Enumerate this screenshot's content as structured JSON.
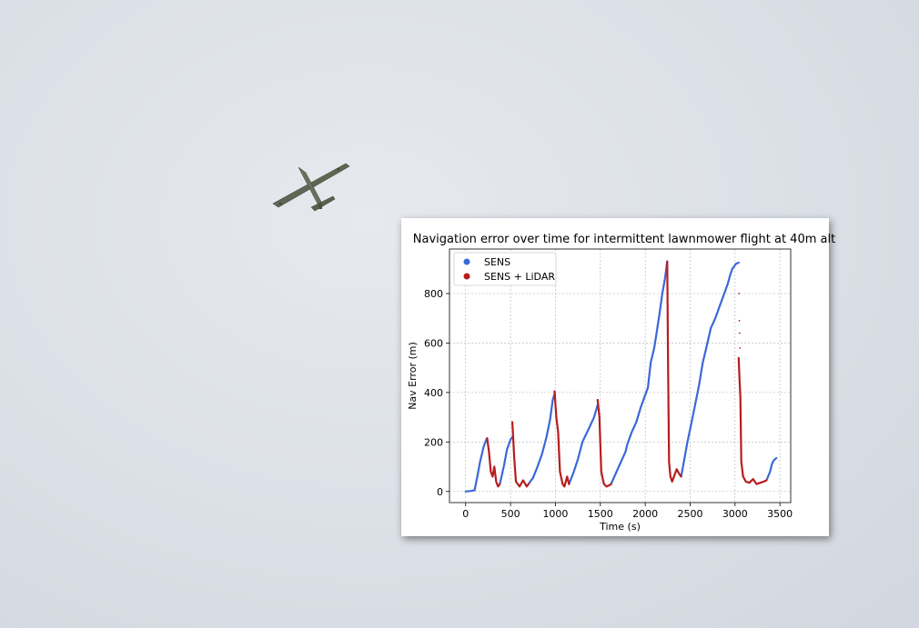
{
  "background": {
    "description_icon": "airplane-icon",
    "sky_color": "#dde1e8"
  },
  "chart_data": {
    "type": "scatter",
    "title": "Navigation error over time for intermittent lawnmower flight at 40m alt",
    "xlabel": "Time (s)",
    "ylabel": "Nav Error (m)",
    "xlim": [
      -180,
      3620
    ],
    "ylim": [
      -45,
      980
    ],
    "xticks": [
      0,
      500,
      1000,
      1500,
      2000,
      2500,
      3000,
      3500
    ],
    "yticks": [
      0,
      200,
      400,
      600,
      800
    ],
    "grid": true,
    "legend_position": "top-left",
    "series": [
      {
        "name": "SENS",
        "color": "#3b68d8",
        "segments": [
          [
            [
              0,
              0
            ],
            [
              60,
              2
            ],
            [
              100,
              5
            ],
            [
              130,
              60
            ],
            [
              160,
              120
            ],
            [
              200,
              180
            ],
            [
              230,
              210
            ],
            [
              240,
              215
            ]
          ],
          [
            [
              380,
              30
            ],
            [
              400,
              60
            ],
            [
              430,
              110
            ],
            [
              460,
              170
            ],
            [
              500,
              210
            ],
            [
              520,
              220
            ]
          ],
          [
            [
              700,
              30
            ],
            [
              750,
              55
            ],
            [
              800,
              100
            ],
            [
              850,
              150
            ],
            [
              900,
              220
            ],
            [
              940,
              290
            ],
            [
              970,
              370
            ],
            [
              990,
              395
            ]
          ],
          [
            [
              1150,
              30
            ],
            [
              1200,
              75
            ],
            [
              1250,
              130
            ],
            [
              1300,
              200
            ],
            [
              1380,
              260
            ],
            [
              1430,
              300
            ],
            [
              1470,
              350
            ]
          ],
          [
            [
              1620,
              30
            ],
            [
              1680,
              80
            ],
            [
              1730,
              120
            ],
            [
              1780,
              160
            ],
            [
              1800,
              190
            ],
            [
              1850,
              240
            ],
            [
              1900,
              280
            ],
            [
              1950,
              340
            ],
            [
              2000,
              390
            ],
            [
              2030,
              420
            ],
            [
              2060,
              520
            ],
            [
              2100,
              580
            ],
            [
              2130,
              650
            ],
            [
              2160,
              720
            ],
            [
              2190,
              800
            ],
            [
              2220,
              860
            ],
            [
              2245,
              930
            ]
          ],
          [
            [
              2400,
              60
            ],
            [
              2430,
              120
            ],
            [
              2470,
              200
            ],
            [
              2510,
              270
            ],
            [
              2550,
              340
            ],
            [
              2600,
              430
            ],
            [
              2640,
              520
            ],
            [
              2680,
              580
            ],
            [
              2730,
              660
            ],
            [
              2780,
              700
            ],
            [
              2830,
              750
            ],
            [
              2880,
              800
            ],
            [
              2920,
              840
            ],
            [
              2950,
              880
            ],
            [
              2970,
              900
            ],
            [
              2990,
              910
            ],
            [
              3010,
              920
            ],
            [
              3040,
              925
            ]
          ],
          [
            [
              3350,
              45
            ],
            [
              3390,
              80
            ],
            [
              3410,
              110
            ],
            [
              3430,
              125
            ],
            [
              3460,
              135
            ]
          ]
        ]
      },
      {
        "name": "SENS + LiDAR",
        "color": "#b81c1c",
        "segments": [
          [
            [
              240,
              215
            ],
            [
              260,
              160
            ],
            [
              280,
              80
            ],
            [
              300,
              60
            ],
            [
              320,
              100
            ],
            [
              340,
              40
            ],
            [
              360,
              20
            ],
            [
              380,
              30
            ]
          ],
          [
            [
              520,
              280
            ],
            [
              540,
              140
            ],
            [
              560,
              40
            ],
            [
              600,
              20
            ],
            [
              640,
              45
            ],
            [
              680,
              20
            ],
            [
              700,
              30
            ]
          ],
          [
            [
              990,
              405
            ],
            [
              1010,
              300
            ],
            [
              1030,
              240
            ],
            [
              1050,
              80
            ],
            [
              1080,
              30
            ],
            [
              1100,
              20
            ],
            [
              1130,
              60
            ],
            [
              1150,
              30
            ]
          ],
          [
            [
              1470,
              370
            ],
            [
              1490,
              300
            ],
            [
              1510,
              80
            ],
            [
              1540,
              30
            ],
            [
              1570,
              20
            ],
            [
              1600,
              25
            ],
            [
              1620,
              30
            ]
          ],
          [
            [
              2245,
              930
            ],
            [
              2255,
              480
            ],
            [
              2265,
              120
            ],
            [
              2280,
              60
            ],
            [
              2300,
              40
            ],
            [
              2320,
              60
            ],
            [
              2350,
              90
            ],
            [
              2380,
              70
            ],
            [
              2400,
              60
            ]
          ],
          [
            [
              3040,
              540
            ],
            [
              3050,
              450
            ],
            [
              3060,
              380
            ],
            [
              3070,
              120
            ],
            [
              3090,
              60
            ],
            [
              3120,
              40
            ],
            [
              3160,
              35
            ],
            [
              3200,
              50
            ],
            [
              3240,
              30
            ],
            [
              3280,
              35
            ],
            [
              3320,
              40
            ],
            [
              3350,
              45
            ]
          ]
        ],
        "sparse_points": [
          [
            2250,
            820
          ],
          [
            2252,
            720
          ],
          [
            2255,
            600
          ],
          [
            2258,
            440
          ],
          [
            3045,
            800
          ],
          [
            3048,
            690
          ],
          [
            3052,
            640
          ],
          [
            3055,
            580
          ]
        ]
      }
    ]
  }
}
